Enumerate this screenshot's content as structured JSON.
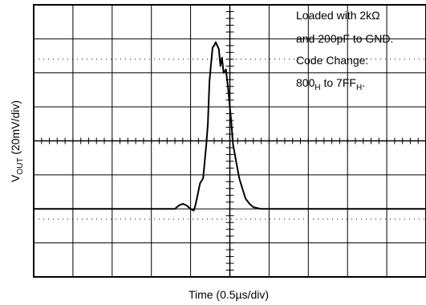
{
  "chart_data": {
    "type": "line",
    "title": "",
    "xlabel": "Time (0.5µs/div)",
    "ylabel_main": "V",
    "ylabel_sub": "OUT",
    "ylabel_rest": " (20mV/div)",
    "grid": true,
    "x_divisions": 10,
    "y_divisions": 8,
    "xlim": [
      0,
      5.0
    ],
    "ylim": [
      -80,
      80
    ],
    "annotation_lines": [
      {
        "text": "Loaded with 2kΩ"
      },
      {
        "text": "and 200pF to GND."
      },
      {
        "text": "Code Change:"
      },
      {
        "main1": "800",
        "sub1": "H",
        "main2": " to 7FF",
        "sub2": "H",
        "tail": "."
      }
    ],
    "series": [
      {
        "x": [
          0.0,
          1.8,
          1.85,
          1.9,
          1.95,
          2.0,
          2.04,
          2.06,
          2.08,
          2.12,
          2.16,
          2.2,
          2.22,
          2.24,
          2.26,
          2.28,
          2.3,
          2.32,
          2.34,
          2.36,
          2.38,
          2.4,
          2.42,
          2.45,
          2.48,
          2.5,
          2.52,
          2.54,
          2.58,
          2.62,
          2.66,
          2.7,
          2.75,
          2.8,
          2.9,
          3.0,
          5.0
        ],
        "values": [
          -40,
          -40,
          -38,
          -37,
          -38,
          -40,
          -41,
          -38,
          -34,
          -25,
          -22,
          -2,
          10,
          35,
          45,
          55,
          56,
          58,
          56,
          54,
          44,
          49,
          40,
          42,
          30,
          20,
          10,
          -2,
          -12,
          -22,
          -28,
          -34,
          -37,
          -39,
          -40,
          -40,
          -40
        ]
      }
    ]
  }
}
